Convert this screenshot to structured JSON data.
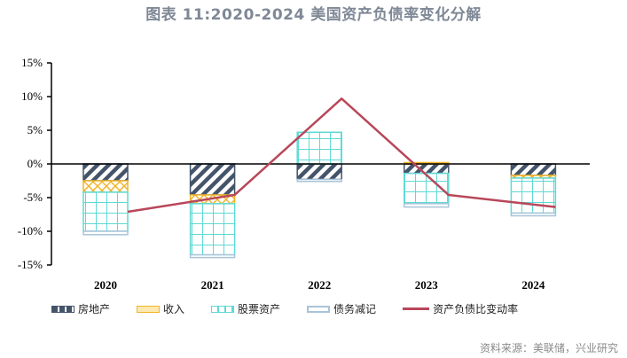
{
  "title": "图表 11:2020-2024 美国资产负债率变化分解",
  "source": "资料来源：美联储，兴业研究",
  "colors": {
    "real_estate": "#44546a",
    "income": "#f0b429",
    "stocks": "#5fd9d4",
    "debt": "#a9c4d8",
    "line": "#b8475a"
  },
  "legend": [
    {
      "key": "real_estate",
      "label": "房地产",
      "icon": "hatched-swatch"
    },
    {
      "key": "income",
      "label": "收入",
      "icon": "crosshatch-swatch"
    },
    {
      "key": "stocks",
      "label": "股票资产",
      "icon": "grid-swatch"
    },
    {
      "key": "debt",
      "label": "债务减记",
      "icon": "outline-swatch"
    },
    {
      "key": "ratio_change",
      "label": "资产负债比变动率",
      "icon": "line-swatch"
    }
  ],
  "chart_data": {
    "type": "bar",
    "stacked": true,
    "title": "图表 11:2020-2024 美国资产负债率变化分解",
    "xlabel": "",
    "ylabel": "",
    "ylim": [
      -15,
      15
    ],
    "yticks": [
      "15%",
      "10%",
      "5%",
      "0%",
      "-5%",
      "-10%",
      "-15%"
    ],
    "categories": [
      "2020",
      "2021",
      "2022",
      "2023",
      "2024"
    ],
    "series": [
      {
        "name": "房地产",
        "type": "bar",
        "values": [
          -2.5,
          -4.6,
          -2.3,
          -1.4,
          -1.7
        ]
      },
      {
        "name": "收入",
        "type": "bar",
        "values": [
          -1.7,
          -1.3,
          0.0,
          0.2,
          -0.4
        ]
      },
      {
        "name": "股票资产",
        "type": "bar",
        "values": [
          -5.8,
          -7.6,
          4.7,
          -4.5,
          -5.2
        ]
      },
      {
        "name": "债务减记",
        "type": "bar",
        "values": [
          -0.5,
          -0.4,
          -0.3,
          -0.5,
          -0.4
        ]
      },
      {
        "name": "资产负债比变动率",
        "type": "line",
        "values": [
          -7.1,
          -4.6,
          9.7,
          -4.6,
          -6.4
        ]
      }
    ],
    "grid": false,
    "legend_position": "bottom"
  }
}
